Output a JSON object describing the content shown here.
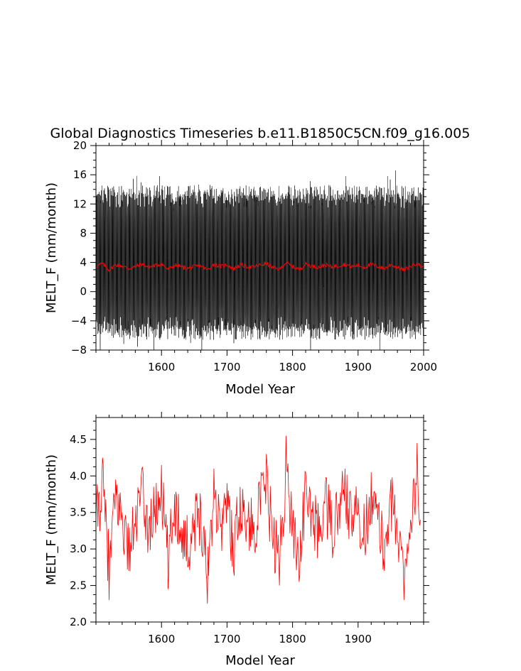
{
  "chart_data": [
    {
      "type": "line",
      "title": "Global Diagnostics Timeseries b.e11.B1850C5CN.f09_g16.005",
      "xlabel": "Model Year",
      "ylabel": "MELT_F (mm/month)",
      "xlim": [
        1500,
        2000
      ],
      "ylim": [
        -8,
        20
      ],
      "x_ticks": [
        1600,
        1700,
        1800,
        1900,
        2000
      ],
      "y_ticks": [
        -8,
        -4,
        0,
        4,
        8,
        12,
        16,
        20
      ],
      "grid": false,
      "series": [
        {
          "color": "#000000",
          "description_values": "monthly values oscillating seasonally between about -5 and 13, with extremes reaching about -7 and 17",
          "monthly_min_typical": -5,
          "monthly_max_typical": 13,
          "x_start": 1500,
          "x_end": 2000
        },
        {
          "color": "#ff0000",
          "annual_mean_approx": 3.5,
          "x_start": 1500,
          "x_end": 2000
        }
      ]
    },
    {
      "type": "line",
      "title": "",
      "xlabel": "Model Year",
      "ylabel": "MELT_F (mm/month)",
      "xlim": [
        1500,
        2000
      ],
      "ylim": [
        2.0,
        4.8
      ],
      "x_ticks": [
        1600,
        1700,
        1800,
        1900
      ],
      "y_ticks": [
        2.0,
        2.5,
        3.0,
        3.5,
        4.0,
        4.5
      ],
      "y_tick_labels": [
        "2.0",
        "2.5",
        "3.0",
        "3.5",
        "4.0",
        "4.5"
      ],
      "grid": false,
      "series": [
        {
          "color": "#ff0000",
          "x": [
            1500,
            1510,
            1520,
            1530,
            1540,
            1550,
            1560,
            1570,
            1580,
            1590,
            1600,
            1610,
            1620,
            1630,
            1640,
            1650,
            1660,
            1670,
            1680,
            1690,
            1700,
            1710,
            1720,
            1730,
            1740,
            1750,
            1760,
            1770,
            1780,
            1790,
            1800,
            1810,
            1820,
            1830,
            1840,
            1850,
            1860,
            1870,
            1880,
            1890,
            1900,
            1910,
            1920,
            1930,
            1940,
            1950,
            1960,
            1970,
            1980,
            1990,
            1995
          ],
          "y": [
            3.4,
            4.25,
            2.3,
            3.95,
            3.5,
            2.7,
            3.3,
            4.1,
            3.2,
            3.6,
            4.15,
            2.45,
            3.75,
            3.3,
            2.75,
            3.4,
            3.6,
            2.25,
            4.1,
            3.3,
            3.9,
            2.7,
            3.85,
            3.4,
            3.2,
            3.8,
            4.3,
            3.0,
            2.5,
            4.55,
            3.3,
            2.55,
            4.05,
            3.5,
            3.1,
            3.9,
            3.2,
            3.6,
            4.1,
            3.3,
            3.7,
            3.1,
            4.05,
            3.4,
            2.7,
            3.95,
            3.1,
            2.3,
            3.4,
            4.45,
            3.4
          ]
        }
      ]
    }
  ]
}
